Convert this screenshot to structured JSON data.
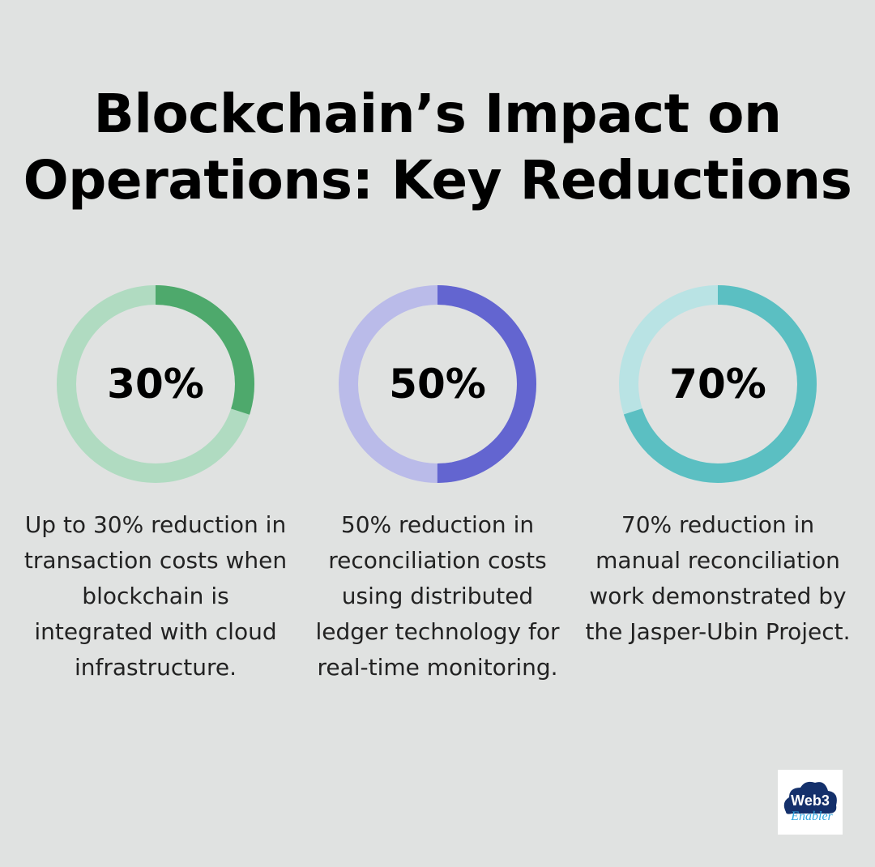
{
  "title": "Blockchain’s Impact on Operations: Key Reductions",
  "chart_data": {
    "type": "pie",
    "charts": [
      {
        "value": 30,
        "label": "30%",
        "description": "Up to 30% reduction in transaction costs when blockchain is integrated with cloud infrastructure.",
        "color": "#4ea96c",
        "track_color": "#b0dbc1"
      },
      {
        "value": 50,
        "label": "50%",
        "description": "50% reduction in reconciliation costs using distributed ledger technology for real-time monitoring.",
        "color": "#6365d0",
        "track_color": "#babbe9"
      },
      {
        "value": 70,
        "label": "70%",
        "description": "70% reduction in manual reconciliation work demonstrated by the Jasper-Ubin Project.",
        "color": "#5bbfc2",
        "track_color": "#b9e3e4"
      }
    ]
  },
  "logo": {
    "text": "Web3 Enabler",
    "colors": [
      "#14306b",
      "#2fa6e0"
    ]
  }
}
